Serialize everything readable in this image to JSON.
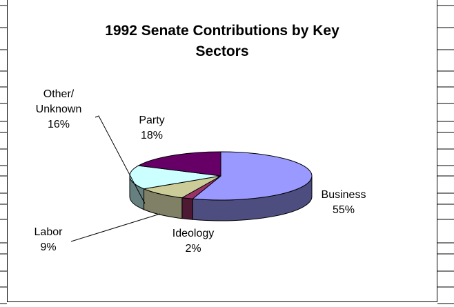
{
  "chart_data": {
    "type": "pie",
    "title_lines": [
      "1992 Senate Contributions by Key",
      "Sectors"
    ],
    "slices": [
      {
        "label": "Business",
        "value": 55,
        "pct_text": "55%",
        "color": "#9999ff",
        "side": "#4d4d80"
      },
      {
        "label": "Ideology",
        "value": 2,
        "pct_text": "2%",
        "color": "#993366",
        "side": "#4d1933"
      },
      {
        "label": "Labor",
        "value": 9,
        "pct_text": "9%",
        "color": "#cccc99",
        "side": "#808066"
      },
      {
        "label": "Other/ Unknown",
        "value": 16,
        "pct_text": "16%",
        "color": "#ccffff",
        "side": "#668080"
      },
      {
        "label": "Party",
        "value": 18,
        "pct_text": "18%",
        "color": "#660066",
        "side": "#330033"
      }
    ],
    "label_lines": {
      "business": [
        "Business",
        "55%"
      ],
      "ideology": [
        "Ideology",
        "2%"
      ],
      "labor": [
        "Labor",
        "9%"
      ],
      "other": [
        "Other/",
        "Unknown",
        "16%"
      ],
      "party": [
        "Party",
        "18%"
      ]
    },
    "legend": "none",
    "grid": false
  }
}
